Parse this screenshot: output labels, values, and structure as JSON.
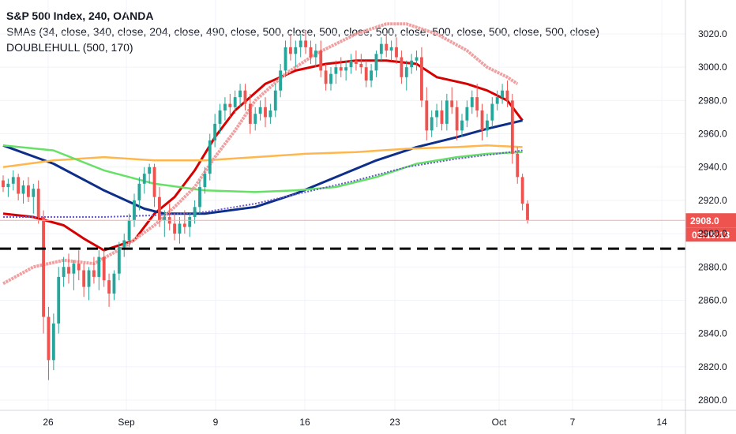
{
  "header": {
    "title": "S&P 500 Index, 240, OANDA",
    "indicator_1": "SMAs (34, close, 340, close, 204, close, 490, close, 500, close, 500, close, 500, close, 500, close, 500, close, 500, close)",
    "indicator_2": "DOUBLEHULL (500, 170)"
  },
  "colors": {
    "up_candle": "#26a69a",
    "down_candle": "#ef5350",
    "sma_red": "#d50000",
    "sma_navy": "#0d2f8a",
    "sma_orange": "#ffb74d",
    "sma_green": "#66e066",
    "hull_pink": "#f0a0a0",
    "hull_purple": "#6a5acd",
    "price_badge": "#ef5350",
    "support_line": "#000000"
  },
  "chart_data": {
    "type": "candlestick",
    "symbol": "S&P 500 Index",
    "timeframe": "240",
    "source": "OANDA",
    "y_ticks": [
      "2800.0",
      "2820.0",
      "2840.0",
      "2860.0",
      "2880.0",
      "2900.0",
      "2920.0",
      "2940.0",
      "2960.0",
      "2980.0",
      "3000.0",
      "3020.0"
    ],
    "y_tick_values": [
      2800,
      2820,
      2840,
      2860,
      2880,
      2900,
      2920,
      2940,
      2960,
      2980,
      3000,
      3020
    ],
    "x_ticks": [
      "26",
      "Sep",
      "9",
      "16",
      "23",
      "Oct",
      "7",
      "14"
    ],
    "ylim": [
      2794,
      3040
    ],
    "current_price": {
      "label": "2908.0",
      "value": 2908.0
    },
    "countdown": "03:19:13",
    "support_level": 2891,
    "candles": [
      [
        2932,
        2935,
        2925,
        2928
      ],
      [
        2928,
        2933,
        2922,
        2930
      ],
      [
        2930,
        2938,
        2926,
        2934
      ],
      [
        2934,
        2936,
        2920,
        2924
      ],
      [
        2924,
        2932,
        2918,
        2929
      ],
      [
        2929,
        2934,
        2919,
        2922
      ],
      [
        2922,
        2930,
        2912,
        2927
      ],
      [
        2927,
        2932,
        2906,
        2910
      ],
      [
        2910,
        2914,
        2840,
        2850
      ],
      [
        2850,
        2856,
        2812,
        2824
      ],
      [
        2824,
        2852,
        2818,
        2846
      ],
      [
        2846,
        2880,
        2840,
        2874
      ],
      [
        2874,
        2886,
        2868,
        2880
      ],
      [
        2880,
        2888,
        2870,
        2876
      ],
      [
        2876,
        2884,
        2866,
        2882
      ],
      [
        2882,
        2890,
        2872,
        2878
      ],
      [
        2878,
        2882,
        2862,
        2868
      ],
      [
        2868,
        2880,
        2860,
        2878
      ],
      [
        2878,
        2886,
        2870,
        2874
      ],
      [
        2874,
        2890,
        2866,
        2886
      ],
      [
        2886,
        2890,
        2868,
        2872
      ],
      [
        2872,
        2876,
        2856,
        2864
      ],
      [
        2864,
        2878,
        2860,
        2876
      ],
      [
        2876,
        2895,
        2872,
        2892
      ],
      [
        2892,
        2900,
        2886,
        2896
      ],
      [
        2896,
        2912,
        2892,
        2908
      ],
      [
        2908,
        2924,
        2904,
        2920
      ],
      [
        2920,
        2934,
        2914,
        2930
      ],
      [
        2930,
        2940,
        2924,
        2936
      ],
      [
        2936,
        2942,
        2930,
        2940
      ],
      [
        2940,
        2942,
        2916,
        2922
      ],
      [
        2922,
        2928,
        2904,
        2908
      ],
      [
        2908,
        2914,
        2898,
        2910
      ],
      [
        2910,
        2918,
        2902,
        2906
      ],
      [
        2906,
        2912,
        2896,
        2900
      ],
      [
        2900,
        2910,
        2894,
        2906
      ],
      [
        2906,
        2914,
        2900,
        2904
      ],
      [
        2904,
        2912,
        2898,
        2910
      ],
      [
        2910,
        2920,
        2906,
        2916
      ],
      [
        2916,
        2932,
        2912,
        2928
      ],
      [
        2928,
        2940,
        2924,
        2936
      ],
      [
        2936,
        2960,
        2932,
        2956
      ],
      [
        2956,
        2972,
        2952,
        2966
      ],
      [
        2966,
        2978,
        2960,
        2974
      ],
      [
        2974,
        2982,
        2968,
        2978
      ],
      [
        2978,
        2984,
        2970,
        2976
      ],
      [
        2976,
        2986,
        2972,
        2982
      ],
      [
        2982,
        2990,
        2976,
        2986
      ],
      [
        2986,
        2990,
        2974,
        2978
      ],
      [
        2978,
        2984,
        2960,
        2966
      ],
      [
        2966,
        2976,
        2962,
        2972
      ],
      [
        2972,
        2980,
        2968,
        2976
      ],
      [
        2976,
        2982,
        2964,
        2970
      ],
      [
        2970,
        2978,
        2966,
        2974
      ],
      [
        2974,
        2990,
        2970,
        2986
      ],
      [
        2986,
        3002,
        2982,
        2998
      ],
      [
        2998,
        3016,
        2994,
        3012
      ],
      [
        3012,
        3020,
        3004,
        3008
      ],
      [
        3008,
        3016,
        3000,
        3012
      ],
      [
        3012,
        3020,
        3006,
        3016
      ],
      [
        3016,
        3022,
        3008,
        3012
      ],
      [
        3012,
        3016,
        3002,
        3006
      ],
      [
        3006,
        3014,
        3000,
        3010
      ],
      [
        3010,
        3016,
        2994,
        2998
      ],
      [
        2998,
        3002,
        2986,
        2990
      ],
      [
        2990,
        3000,
        2986,
        2996
      ],
      [
        2996,
        3004,
        2990,
        3000
      ],
      [
        3000,
        3006,
        2994,
        2998
      ],
      [
        2998,
        3004,
        2992,
        3000
      ],
      [
        3000,
        3008,
        2996,
        3004
      ],
      [
        3004,
        3010,
        2998,
        3002
      ],
      [
        3002,
        3008,
        2996,
        3000
      ],
      [
        3000,
        3004,
        2988,
        2992
      ],
      [
        2992,
        3002,
        2988,
        2998
      ],
      [
        2998,
        3010,
        2994,
        3008
      ],
      [
        3008,
        3018,
        3004,
        3014
      ],
      [
        3014,
        3020,
        3006,
        3010
      ],
      [
        3010,
        3016,
        3004,
        3012
      ],
      [
        3012,
        3018,
        3002,
        3006
      ],
      [
        3006,
        3010,
        2990,
        2994
      ],
      [
        2994,
        3004,
        2986,
        3000
      ],
      [
        3000,
        3008,
        2996,
        3004
      ],
      [
        3004,
        3010,
        2998,
        3006
      ],
      [
        3006,
        3012,
        2976,
        2980
      ],
      [
        2980,
        2988,
        2956,
        2962
      ],
      [
        2962,
        2974,
        2958,
        2970
      ],
      [
        2970,
        2978,
        2964,
        2974
      ],
      [
        2974,
        2980,
        2962,
        2966
      ],
      [
        2966,
        2984,
        2962,
        2980
      ],
      [
        2980,
        2988,
        2972,
        2976
      ],
      [
        2976,
        2980,
        2956,
        2962
      ],
      [
        2962,
        2972,
        2958,
        2968
      ],
      [
        2968,
        2980,
        2964,
        2976
      ],
      [
        2976,
        2986,
        2972,
        2982
      ],
      [
        2982,
        2990,
        2970,
        2974
      ],
      [
        2974,
        2978,
        2956,
        2962
      ],
      [
        2962,
        2972,
        2958,
        2968
      ],
      [
        2968,
        2982,
        2964,
        2978
      ],
      [
        2978,
        2986,
        2974,
        2982
      ],
      [
        2982,
        2990,
        2978,
        2986
      ],
      [
        2986,
        2992,
        2976,
        2980
      ],
      [
        2980,
        2984,
        2942,
        2948
      ],
      [
        2948,
        2952,
        2930,
        2934
      ],
      [
        2934,
        2936,
        2914,
        2918
      ],
      [
        2918,
        2920,
        2906,
        2908
      ]
    ],
    "series": [
      {
        "color_key": "sma_red",
        "points": [
          [
            0,
            2912
          ],
          [
            6,
            2910
          ],
          [
            12,
            2905
          ],
          [
            16,
            2897
          ],
          [
            20,
            2890
          ],
          [
            26,
            2896
          ],
          [
            30,
            2912
          ],
          [
            34,
            2922
          ],
          [
            38,
            2938
          ],
          [
            42,
            2958
          ],
          [
            46,
            2974
          ],
          [
            52,
            2990
          ],
          [
            58,
            2998
          ],
          [
            64,
            3002
          ],
          [
            70,
            3004
          ],
          [
            76,
            3004
          ],
          [
            82,
            3002
          ],
          [
            86,
            2994
          ],
          [
            92,
            2990
          ],
          [
            96,
            2986
          ],
          [
            100,
            2980
          ],
          [
            103,
            2968
          ]
        ]
      },
      {
        "color_key": "sma_navy",
        "points": [
          [
            0,
            2953
          ],
          [
            10,
            2942
          ],
          [
            20,
            2926
          ],
          [
            28,
            2915
          ],
          [
            32,
            2912
          ],
          [
            40,
            2912
          ],
          [
            50,
            2916
          ],
          [
            58,
            2924
          ],
          [
            66,
            2934
          ],
          [
            74,
            2944
          ],
          [
            82,
            2952
          ],
          [
            90,
            2958
          ],
          [
            96,
            2963
          ],
          [
            103,
            2968
          ]
        ]
      },
      {
        "color_key": "sma_orange",
        "points": [
          [
            0,
            2940
          ],
          [
            10,
            2944
          ],
          [
            20,
            2946
          ],
          [
            30,
            2944
          ],
          [
            40,
            2944
          ],
          [
            50,
            2946
          ],
          [
            60,
            2948
          ],
          [
            70,
            2949
          ],
          [
            80,
            2951
          ],
          [
            90,
            2952
          ],
          [
            96,
            2953
          ],
          [
            103,
            2952
          ]
        ]
      },
      {
        "color_key": "sma_green",
        "points": [
          [
            0,
            2953
          ],
          [
            10,
            2950
          ],
          [
            20,
            2938
          ],
          [
            30,
            2930
          ],
          [
            40,
            2926
          ],
          [
            50,
            2925
          ],
          [
            58,
            2926
          ],
          [
            66,
            2928
          ],
          [
            74,
            2934
          ],
          [
            82,
            2942
          ],
          [
            90,
            2946
          ],
          [
            96,
            2948
          ],
          [
            103,
            2949
          ]
        ]
      },
      {
        "color_key": "hull_pink",
        "points": [
          [
            0,
            2870
          ],
          [
            6,
            2880
          ],
          [
            12,
            2884
          ],
          [
            18,
            2882
          ],
          [
            24,
            2892
          ],
          [
            30,
            2905
          ],
          [
            34,
            2916
          ],
          [
            38,
            2928
          ],
          [
            42,
            2946
          ],
          [
            46,
            2962
          ],
          [
            50,
            2980
          ],
          [
            56,
            2996
          ],
          [
            62,
            3008
          ],
          [
            70,
            3020
          ],
          [
            76,
            3026
          ],
          [
            80,
            3026
          ],
          [
            86,
            3020
          ],
          [
            92,
            3010
          ],
          [
            96,
            3000
          ],
          [
            100,
            2994
          ],
          [
            102,
            2990
          ]
        ]
      },
      {
        "color_key": "hull_purple",
        "points": [
          [
            0,
            2910
          ],
          [
            10,
            2910
          ],
          [
            20,
            2910
          ],
          [
            30,
            2911
          ],
          [
            40,
            2913
          ],
          [
            50,
            2918
          ],
          [
            60,
            2925
          ],
          [
            70,
            2932
          ],
          [
            80,
            2940
          ],
          [
            90,
            2945
          ],
          [
            98,
            2948
          ],
          [
            103,
            2950
          ]
        ]
      }
    ]
  }
}
